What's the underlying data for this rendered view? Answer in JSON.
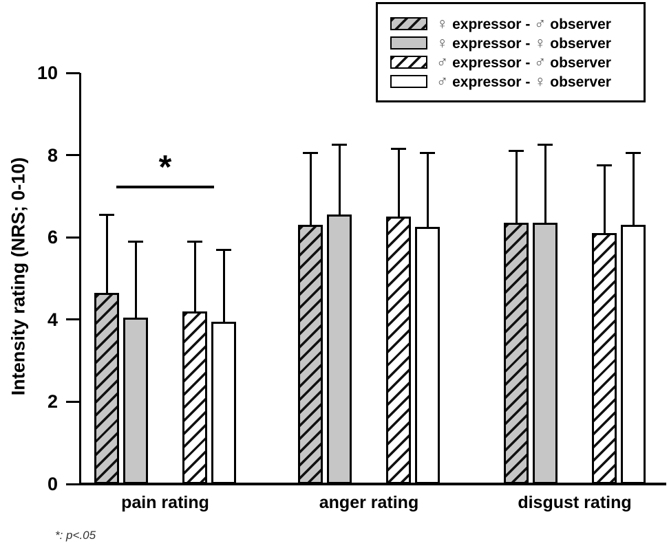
{
  "colors": {
    "background": "#ffffff",
    "bar_gray": "#c6c6c6",
    "bar_white": "#ffffff",
    "hatch": "#111111",
    "axis": "#000000",
    "symbol": "#555555",
    "footnote": "#333333"
  },
  "figure": {
    "footnote": "*: p<.05",
    "significance_star": "*"
  },
  "legend": {
    "items": [
      {
        "swatch": "gray-hatched",
        "expressor_symbol": "♀",
        "expressor_word": "expressor",
        "separator": "-",
        "observer_symbol": "♂",
        "observer_word": "observer"
      },
      {
        "swatch": "gray-solid",
        "expressor_symbol": "♀",
        "expressor_word": "expressor",
        "separator": "-",
        "observer_symbol": "♀",
        "observer_word": "observer"
      },
      {
        "swatch": "white-hatched",
        "expressor_symbol": "♂",
        "expressor_word": "expressor",
        "separator": "-",
        "observer_symbol": "♂",
        "observer_word": "observer"
      },
      {
        "swatch": "white-solid",
        "expressor_symbol": "♂",
        "expressor_word": "expressor",
        "separator": "-",
        "observer_symbol": "♀",
        "observer_word": "observer"
      }
    ]
  },
  "chart_data": {
    "type": "bar",
    "title": "",
    "xlabel": "",
    "ylabel": "Intensity rating (NRS; 0-10)",
    "ylim": [
      0,
      10
    ],
    "yticks": [
      0,
      2,
      4,
      6,
      8,
      10
    ],
    "grid": false,
    "legend_position": "top-right",
    "categories": [
      "pain rating",
      "anger rating",
      "disgust rating"
    ],
    "series": [
      {
        "name": "♀ expressor - ♂ observer",
        "style": "gray-hatched",
        "values": [
          4.65,
          6.3,
          6.35
        ],
        "errors": [
          1.9,
          1.75,
          1.75
        ]
      },
      {
        "name": "♀ expressor - ♀ observer",
        "style": "gray-solid",
        "values": [
          4.05,
          6.55,
          6.35
        ],
        "errors": [
          1.85,
          1.7,
          1.9
        ]
      },
      {
        "name": "♂ expressor - ♂ observer",
        "style": "white-hatched",
        "values": [
          4.2,
          6.5,
          6.1
        ],
        "errors": [
          1.7,
          1.65,
          1.65
        ]
      },
      {
        "name": "♂ expressor - ♀ observer",
        "style": "white-solid",
        "values": [
          3.95,
          6.25,
          6.3
        ],
        "errors": [
          1.75,
          1.8,
          1.75
        ]
      }
    ],
    "error_bars": "upper, capped (SD)",
    "annotations": [
      {
        "type": "significance-bracket",
        "group": "pain rating",
        "label": "*",
        "meaning": "p<.05"
      }
    ]
  }
}
